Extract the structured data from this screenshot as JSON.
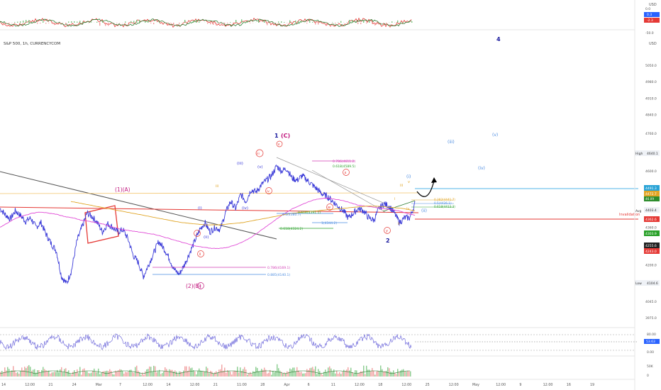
{
  "header": {
    "title": "S&P 500, 1h, CURRENCYCOM",
    "currency_top": "USD",
    "currency_main": "USD"
  },
  "scale": {
    "tick_labels": [
      "5050.0",
      "4980.0",
      "4910.0",
      "4840.0",
      "4760.0",
      "4680.0",
      "4600.0",
      "4520.0",
      "4440.0",
      "4360.0",
      "4280.0",
      "4200.0",
      "4120.0",
      "4045.0",
      "3975.0"
    ],
    "badges": {
      "high": {
        "label": "High",
        "value": "4640.1"
      },
      "p1": {
        "value": "4491.3",
        "color": "#29a3d6"
      },
      "p2": {
        "value": "4472.7",
        "color": "#e0a526"
      },
      "p3": {
        "value": "46.09",
        "color": "#2c8c2c"
      },
      "avg": {
        "label": "Avg",
        "value": "4403.4"
      },
      "p4": {
        "value": "4362.6",
        "color": "#e53935"
      },
      "p5": {
        "value": "4303.9",
        "color": "#2aa12a"
      },
      "p6": {
        "value": "4255.6",
        "color": "#222222"
      },
      "p7": {
        "value": "4243.0",
        "color": "#e53935"
      },
      "low": {
        "label": "Low",
        "value": "4104.6"
      }
    },
    "invalidation": "Invalidation",
    "osc_top": {
      "values": [
        "0.0",
        "0.3",
        "-2.3",
        "-50.0"
      ]
    },
    "rsi": {
      "values": [
        "80.00",
        "53.63",
        "0.00"
      ]
    },
    "vol": {
      "values": [
        "50K",
        "0"
      ]
    }
  },
  "time_axis": {
    "labels": [
      "14",
      "12:00",
      "21",
      "24",
      "Mar",
      "7",
      "12:00",
      "14",
      "12:00",
      "21",
      "11:00",
      "28",
      "Apr",
      "6",
      "11",
      "12:00",
      "18",
      "12:00",
      "25",
      "12:00",
      "May",
      "12:00",
      "9",
      "12:00",
      "16",
      "19"
    ]
  },
  "waves": {
    "w1_C": "1",
    "c_label": "(C)",
    "v_circ": "v",
    "iii_circ": "iii",
    "iv_circ": "iv",
    "one_A": "(1)(A)",
    "two_B": "(2)(B)",
    "c_circ": "c",
    "i_circ": "i",
    "ii_circ": "ii",
    "small_i": "(i)",
    "small_ii": "(ii)",
    "small_iii": "(iii)",
    "small_iv": "(iv)",
    "small_v": "(v)",
    "x_circ": "x",
    "w_circ": "w",
    "y_circ": "y",
    "two": "2",
    "four": "4",
    "right_i": "(i)",
    "right_ii": "(ii)",
    "right_iii": "(iii)",
    "right_iv": "(iv)",
    "right_v": "(v)",
    "iii_o": "iii",
    "iv_o": "iv",
    "ii_o": "ii",
    "i_o": "i",
    "v_o": "v"
  },
  "fib": {
    "f1": "0.786(4169.1)",
    "f2": "0.885(4140.1)",
    "f3": "0.786(4611.2)",
    "f4": "0.618(4589.5)",
    "f5": "0.5(4380.7)",
    "f6": "0.618(4391.1)",
    "f7": "1(4344.2)",
    "f8": "0.618(4324.2)",
    "f9": "0.382(4441.7)",
    "f10": "0.5(4426.1)",
    "f11": "0.618(4413.3)"
  },
  "chart_data": {
    "type": "line",
    "title": "S&P 500, 1h, CURRENCYCOM",
    "xlabel": "",
    "ylabel": "",
    "ylim": [
      3975,
      5050
    ],
    "series": [
      {
        "values": [
          4440,
          4415,
          4395,
          4430,
          4410,
          4385,
          4400,
          4360,
          4380,
          4330,
          4290,
          4260,
          4150,
          4120,
          4180,
          4300,
          4360,
          4420,
          4405,
          4380,
          4340,
          4375,
          4360,
          4340,
          4350,
          4310,
          4240,
          4210,
          4150,
          4200,
          4250,
          4300,
          4270,
          4230,
          4180,
          4160,
          4200,
          4250,
          4300,
          4350,
          4380,
          4340,
          4360,
          4350,
          4420,
          4470,
          4440,
          4500,
          4470,
          4520,
          4510,
          4540,
          4560,
          4580,
          4620,
          4600,
          4610,
          4570,
          4560,
          4580,
          4560,
          4540,
          4520,
          4500,
          4490,
          4470,
          4450,
          4430,
          4400,
          4420,
          4440,
          4430,
          4400,
          4390,
          4440,
          4460,
          4450,
          4420,
          4380,
          4400,
          4400,
          4460
        ]
      },
      {
        "values": [
          4360,
          4380,
          4400,
          4410,
          4420,
          4425,
          4420,
          4415,
          4405,
          4400,
          4390,
          4385,
          4380,
          4370,
          4360,
          4350,
          4345,
          4340,
          4335,
          4330,
          4320,
          4310,
          4300,
          4290,
          4280,
          4275,
          4270,
          4270,
          4275,
          4285,
          4300,
          4320,
          4345,
          4370,
          4395,
          4420,
          4440,
          4455,
          4470,
          4480,
          4485,
          4480,
          4475,
          4465,
          4455,
          4450,
          4445,
          4440,
          4435,
          4430,
          4420,
          4410
        ]
      },
      {
        "values": [
          4470,
          4460,
          4450,
          4440,
          4430,
          4420,
          4410,
          4400,
          4390,
          4380,
          4375,
          4370,
          4370,
          4375,
          4380,
          4390,
          4400,
          4410,
          4420,
          4425,
          4430,
          4435,
          4440,
          4445,
          4450,
          4450,
          4445,
          4440,
          4430
        ]
      }
    ],
    "grid": false
  }
}
